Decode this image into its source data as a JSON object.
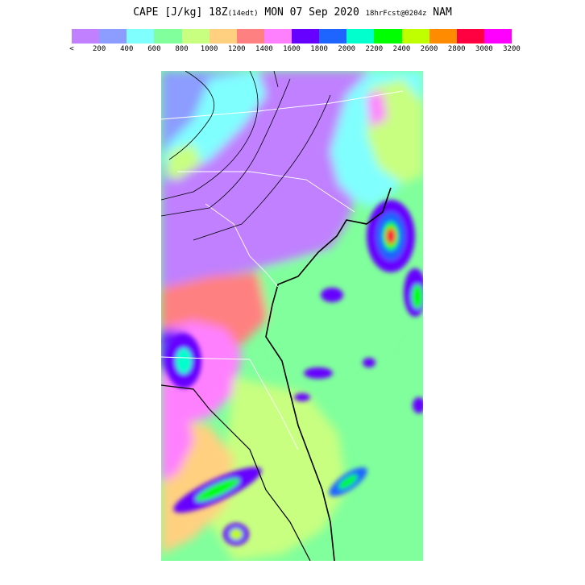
{
  "title": {
    "main": "CAPE [J/kg] 18Z",
    "local_time": "(14edt)",
    "date": "MON 07 Sep 2020",
    "forecast": "18hrFcst@0204z",
    "model": "NAM"
  },
  "legend": {
    "colors": [
      "#c080ff",
      "#8c9cff",
      "#80ffff",
      "#80ff9c",
      "#c8ff80",
      "#ffd080",
      "#ff8080",
      "#ff80ff",
      "#6600ff",
      "#1e64ff",
      "#00ffcc",
      "#00ff00",
      "#c0ff00",
      "#ff8c00",
      "#ff0040",
      "#ff00ff"
    ],
    "tick_labels": [
      "<",
      "200",
      "400",
      "600",
      "800",
      "1000",
      "1200",
      "1400",
      "1600",
      "1800",
      "2000",
      "2200",
      "2400",
      "2600",
      "2800",
      "3000",
      "3200"
    ]
  },
  "map": {
    "region": "US East Coast (Mid-Atlantic to Florida)"
  }
}
